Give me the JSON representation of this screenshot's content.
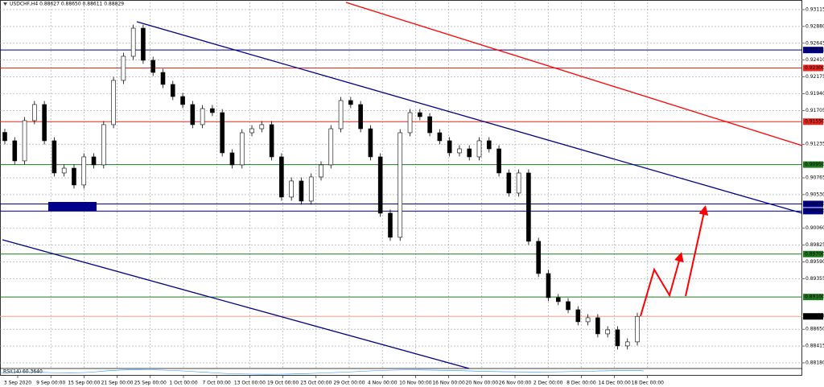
{
  "chart_data": {
    "type": "candlestick",
    "title": "USDCHF,H4 0.88627 0.88650 0.88611 0.88829",
    "indicator": "RSI(14) 60.3640",
    "x_labels": [
      "3 Sep 2020",
      "9 Sep 00:00",
      "15 Sep 00:00",
      "21 Sep 00:00",
      "25 Sep 00:00",
      "1 Oct 00:00",
      "7 Oct 00:00",
      "13 Oct 00:00",
      "19 Oct 00:00",
      "23 Oct 00:00",
      "29 Oct 00:00",
      "4 Nov 00:00",
      "10 Nov 00:00",
      "16 Nov 00:00",
      "20 Nov 00:00",
      "26 Nov 00:00",
      "2 Dec 00:00",
      "8 Dec 00:00",
      "14 Dec 00:00",
      "18 Dec 00:00"
    ],
    "open": [
      0.914,
      0.91283,
      0.91002,
      0.91564,
      0.91789,
      0.91283,
      0.90833,
      0.909,
      0.90665,
      0.91058,
      0.90946,
      0.91508,
      0.92126,
      0.92463,
      0.92856,
      0.92407,
      0.92238,
      0.9207,
      0.91901,
      0.91789,
      0.91508,
      0.91732,
      0.91676,
      0.91114,
      0.90946,
      0.91395,
      0.91451,
      0.91508,
      0.91058,
      0.90496,
      0.90721,
      0.9044,
      0.90777,
      0.90946,
      0.91451,
      0.91845,
      0.91789,
      0.91451,
      0.91058,
      0.90271,
      0.89934,
      0.91395,
      0.91676,
      0.9162,
      0.91395,
      0.91283,
      0.91114,
      0.9117,
      0.91058,
      0.91283,
      0.9117,
      0.90833,
      0.90552,
      0.90833,
      0.89878,
      0.89428,
      0.89091,
      0.89035,
      0.88922,
      0.88754,
      0.8881,
      0.88585,
      0.88641,
      0.88417,
      0.88473
    ],
    "high": [
      0.9145,
      0.91333,
      0.91614,
      0.91839,
      0.91839,
      0.91333,
      0.9095,
      0.9095,
      0.91108,
      0.91108,
      0.91558,
      0.92176,
      0.92513,
      0.92906,
      0.92906,
      0.92457,
      0.92288,
      0.9212,
      0.91951,
      0.91839,
      0.91782,
      0.91782,
      0.91726,
      0.91164,
      0.91445,
      0.91501,
      0.91558,
      0.91558,
      0.91108,
      0.90771,
      0.90771,
      0.90827,
      0.90996,
      0.91501,
      0.91895,
      0.91895,
      0.91839,
      0.91501,
      0.91108,
      0.90321,
      0.91445,
      0.91726,
      0.91726,
      0.9167,
      0.91445,
      0.91333,
      0.9122,
      0.9122,
      0.91333,
      0.91333,
      0.9122,
      0.90883,
      0.90883,
      0.90883,
      0.89928,
      0.89478,
      0.89141,
      0.89085,
      0.88972,
      0.8886,
      0.8886,
      0.88691,
      0.88691,
      0.88523,
      0.88879
    ],
    "low": [
      0.91233,
      0.90952,
      0.90952,
      0.91514,
      0.91233,
      0.90783,
      0.90783,
      0.90615,
      0.90615,
      0.90896,
      0.90896,
      0.91458,
      0.92076,
      0.92413,
      0.92357,
      0.92188,
      0.9202,
      0.91851,
      0.91739,
      0.91458,
      0.91458,
      0.91626,
      0.91064,
      0.90896,
      0.90896,
      0.91345,
      0.91401,
      0.91008,
      0.90446,
      0.90446,
      0.9039,
      0.9039,
      0.90727,
      0.90896,
      0.91401,
      0.91739,
      0.91401,
      0.91008,
      0.90221,
      0.89884,
      0.89884,
      0.91345,
      0.9157,
      0.91345,
      0.91233,
      0.91064,
      0.91064,
      0.91008,
      0.91008,
      0.9112,
      0.90783,
      0.90502,
      0.90502,
      0.89828,
      0.89378,
      0.89041,
      0.88985,
      0.88872,
      0.88704,
      0.88704,
      0.88535,
      0.88535,
      0.88367,
      0.88367,
      0.88423
    ],
    "close": [
      0.91283,
      0.91002,
      0.91564,
      0.91789,
      0.91283,
      0.90833,
      0.909,
      0.90665,
      0.91058,
      0.90946,
      0.91508,
      0.92126,
      0.92463,
      0.92856,
      0.92407,
      0.92238,
      0.9207,
      0.91901,
      0.91789,
      0.91508,
      0.91732,
      0.91676,
      0.91114,
      0.90946,
      0.91395,
      0.91451,
      0.91508,
      0.91058,
      0.90496,
      0.90721,
      0.9044,
      0.90777,
      0.90946,
      0.91451,
      0.91845,
      0.91789,
      0.91451,
      0.91058,
      0.90271,
      0.89934,
      0.91395,
      0.91676,
      0.9162,
      0.91395,
      0.91283,
      0.91114,
      0.9117,
      0.91058,
      0.91283,
      0.9117,
      0.90833,
      0.90552,
      0.90833,
      0.89878,
      0.89428,
      0.89091,
      0.89035,
      0.88922,
      0.88754,
      0.8881,
      0.88585,
      0.88641,
      0.88417,
      0.88473,
      0.88829
    ],
    "ylim": [
      0.88101,
      0.93216
    ],
    "yticks": [
      {
        "value": 0.93115,
        "label": "0.93115"
      },
      {
        "value": 0.9288,
        "label": "0.92880"
      },
      {
        "value": 0.92645,
        "label": "0.92645"
      },
      {
        "value": 0.9241,
        "label": "0.92410"
      },
      {
        "value": 0.92175,
        "label": "0.92175"
      },
      {
        "value": 0.9194,
        "label": "0.91940"
      },
      {
        "value": 0.91705,
        "label": "0.91705"
      },
      {
        "value": 0.91235,
        "label": "0.91235"
      },
      {
        "value": 0.90765,
        "label": "0.90765"
      },
      {
        "value": 0.9053,
        "label": "0.90530"
      },
      {
        "value": 0.9006,
        "label": "0.90060"
      },
      {
        "value": 0.89825,
        "label": "0.89825"
      },
      {
        "value": 0.8959,
        "label": "0.89590"
      },
      {
        "value": 0.89355,
        "label": "0.89355"
      },
      {
        "value": 0.8865,
        "label": "0.88650"
      },
      {
        "value": 0.88415,
        "label": "0.88415"
      },
      {
        "value": 0.8818,
        "label": "0.88180"
      }
    ],
    "levels": [
      {
        "value": 0.92551,
        "label": "0.92551",
        "color": "#00008b"
      },
      {
        "value": 0.923,
        "label": "0.92300",
        "color": "#e8261c"
      },
      {
        "value": 0.9155,
        "label": "0.91550",
        "color": "#e8261c"
      },
      {
        "value": 0.9095,
        "label": "0.90950",
        "color": "#1f7a1f"
      },
      {
        "value": 0.904,
        "label": "0.90400",
        "color": "#00008b"
      },
      {
        "value": 0.903,
        "label": "0.90300",
        "color": "#00008b"
      },
      {
        "value": 0.897,
        "label": "0.89700",
        "color": "#1f7a1f"
      },
      {
        "value": 0.891,
        "label": "0.89100",
        "color": "#1f7a1f"
      }
    ],
    "current_price": {
      "value": 0.88829,
      "label": "0.88829",
      "color": "#f4a28c"
    },
    "grid": true
  }
}
